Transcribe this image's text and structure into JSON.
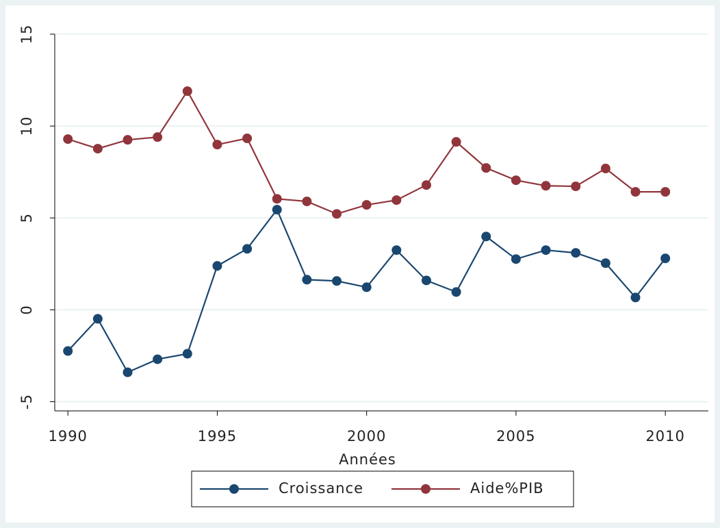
{
  "chart_data": {
    "type": "line",
    "x_label": "Années",
    "x": [
      1990,
      1991,
      1992,
      1993,
      1994,
      1995,
      1996,
      1997,
      1998,
      1999,
      2000,
      2001,
      2002,
      2003,
      2004,
      2005,
      2006,
      2007,
      2008,
      2009,
      2010
    ],
    "series": [
      {
        "name": "Croissance",
        "color": "#1a476f",
        "values": [
          -2.24,
          -0.49,
          -3.4,
          -2.69,
          -2.39,
          2.39,
          3.32,
          5.45,
          1.64,
          1.57,
          1.23,
          3.25,
          1.6,
          0.97,
          3.99,
          2.76,
          3.25,
          3.1,
          2.54,
          0.67,
          2.8
        ]
      },
      {
        "name": "Aide%PIB",
        "color": "#90353b",
        "values": [
          9.29,
          8.77,
          9.25,
          9.4,
          11.9,
          8.99,
          9.33,
          6.04,
          5.9,
          5.22,
          5.71,
          5.97,
          6.79,
          9.14,
          7.72,
          7.05,
          6.75,
          6.72,
          7.69,
          6.42,
          6.42
        ]
      }
    ],
    "xlim": [
      1989.56,
      2011.44
    ],
    "xticks": [
      1990,
      1995,
      2000,
      2005,
      2010
    ],
    "ylim": [
      -5.5,
      16.3
    ],
    "yticks": [
      -5,
      0,
      5,
      10,
      15
    ],
    "grid": true,
    "legend": "bottom"
  }
}
